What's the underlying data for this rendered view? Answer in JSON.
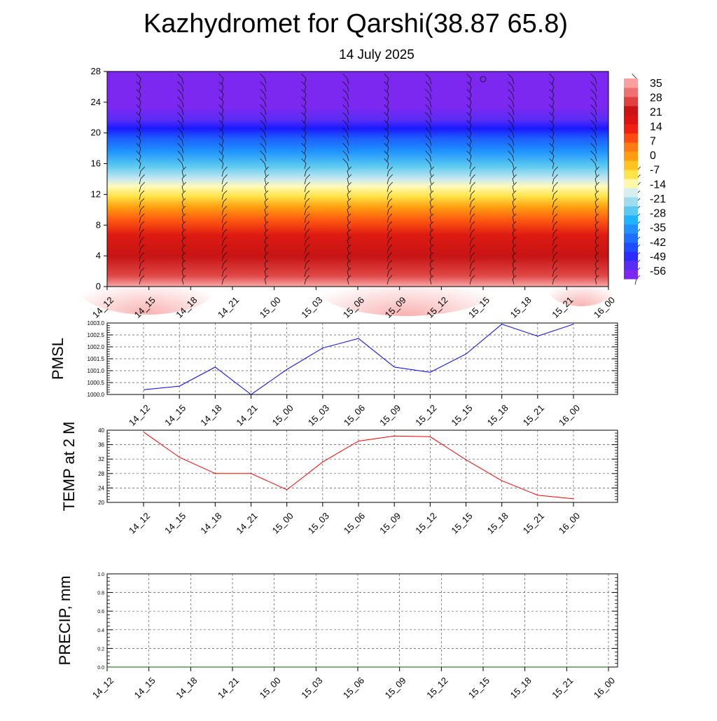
{
  "title": "Kazhydromet for Qarshi(38.87 65.8)",
  "subtitle": "14 July 2025",
  "colors": {
    "pmsl_line": "#0000ff",
    "temp_line": "#ff0000",
    "precip_line": "#006400",
    "colorbar": [
      "#7d28f0",
      "#5a2df5",
      "#2b2bff",
      "#1e4cff",
      "#1f6fff",
      "#1f92ff",
      "#1fb4ff",
      "#5ccaf0",
      "#9fdcef",
      "#d6eef0",
      "#fff8a8",
      "#ffe34a",
      "#ffc21f",
      "#ff9c10",
      "#ff7a10",
      "#ff4a10",
      "#f22010",
      "#dd1414",
      "#c81414",
      "#e04040",
      "#f07070",
      "#f8a0a0"
    ]
  },
  "chart_data": [
    {
      "type": "heatmap",
      "name": "vertical profile",
      "x_tick_labels": [
        "14_12",
        "14_15",
        "14_18",
        "14_21",
        "15_00",
        "15_03",
        "15_06",
        "15_09",
        "15_12",
        "15_15",
        "15_18",
        "15_21",
        "16_00"
      ],
      "y_ticks": [
        0,
        4,
        8,
        12,
        16,
        20,
        24,
        28
      ],
      "ylim": [
        0,
        28
      ],
      "colorbar_labels": [
        "35",
        "28",
        "21",
        "14",
        "7",
        "0",
        "-7",
        "-14",
        "-21",
        "-28",
        "-35",
        "-42",
        "-49",
        "-56"
      ],
      "wind_barbs": true
    },
    {
      "type": "line",
      "ylabel": "PMSL",
      "x_tick_labels": [
        "14_12",
        "14_15",
        "14_18",
        "14_21",
        "15_00",
        "15_03",
        "15_06",
        "15_09",
        "15_12",
        "15_15",
        "15_18",
        "15_21",
        "16_00"
      ],
      "values": [
        1000.2,
        1000.35,
        1001.15,
        1000.0,
        1001.05,
        1001.95,
        1002.35,
        1001.15,
        1000.93,
        1001.7,
        1002.95,
        1002.45,
        1002.95
      ],
      "y_tick_labels": [
        "1000.0",
        "1000.5",
        "1001.0",
        "1001.5",
        "1002.0",
        "1002.5",
        "1003.0"
      ],
      "ylim": [
        1000,
        1003
      ],
      "grid": true
    },
    {
      "type": "line",
      "ylabel": "TEMP at 2 M",
      "x_tick_labels": [
        "14_12",
        "14_15",
        "14_18",
        "14_21",
        "15_00",
        "15_03",
        "15_06",
        "15_09",
        "15_12",
        "15_15",
        "15_18",
        "15_21",
        "16_00"
      ],
      "values": [
        39.5,
        32.5,
        28.0,
        28.0,
        23.5,
        31.2,
        37.0,
        38.4,
        38.2,
        31.8,
        26.0,
        22.0,
        21.0
      ],
      "y_tick_labels": [
        "20",
        "24",
        "28",
        "32",
        "36",
        "40"
      ],
      "ylim": [
        20,
        40
      ],
      "grid": true
    },
    {
      "type": "line",
      "ylabel": "PRECIP, mm",
      "x_tick_labels": [
        "14_12",
        "14_15",
        "14_18",
        "14_21",
        "15_00",
        "15_03",
        "15_06",
        "15_09",
        "15_12",
        "15_15",
        "15_18",
        "15_21",
        "16_00"
      ],
      "values": [
        0,
        0,
        0,
        0,
        0,
        0,
        0,
        0,
        0,
        0,
        0,
        0,
        0
      ],
      "y_tick_labels": [
        "0.0",
        "0.2",
        "0.4",
        "0.6",
        "0.8",
        "1.0"
      ],
      "ylim": [
        0,
        1
      ],
      "grid": true
    }
  ]
}
